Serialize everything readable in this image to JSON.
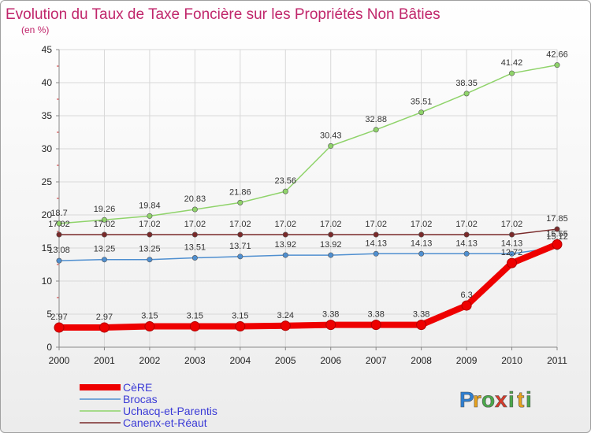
{
  "chart_data": {
    "type": "line",
    "title": "Evolution du Taux de Taxe Foncière sur les Propriétés Non Bâties",
    "subtitle": "(en %)",
    "categories": [
      "2000",
      "2001",
      "2002",
      "2003",
      "2004",
      "2005",
      "2006",
      "2007",
      "2008",
      "2009",
      "2010",
      "2011"
    ],
    "ylim": [
      0,
      45
    ],
    "yticks": [
      0,
      5,
      10,
      15,
      20,
      25,
      30,
      35,
      40,
      45
    ],
    "grid": true,
    "legend_position": "bottom-left",
    "series": [
      {
        "name": "Canenx-et-Réaut",
        "color": "#7a2a2a",
        "values": [
          17.02,
          17.02,
          17.02,
          17.02,
          17.02,
          17.02,
          17.02,
          17.02,
          17.02,
          17.02,
          17.02,
          17.85
        ],
        "labels": [
          "17.02",
          "17.02",
          "17.02",
          "17.02",
          "17.02",
          "17.02",
          "17.02",
          "17.02",
          "17.02",
          "17.02",
          "17.02",
          "17.85"
        ]
      },
      {
        "name": "Brocas",
        "color": "#4f8fd0",
        "values": [
          13.08,
          13.25,
          13.25,
          13.51,
          13.71,
          13.92,
          13.92,
          14.13,
          14.13,
          14.13,
          14.13,
          15.12
        ],
        "labels": [
          "13.08",
          "13.25",
          "13.25",
          "13.51",
          "13.71",
          "13.92",
          "13.92",
          "14.13",
          "14.13",
          "14.13",
          "14.13",
          "15.12"
        ]
      },
      {
        "name": "Uchacq-et-Parentis",
        "color": "#8fd36a",
        "values": [
          18.7,
          19.26,
          19.84,
          20.83,
          21.86,
          23.56,
          30.43,
          32.88,
          35.51,
          38.35,
          41.42,
          42.66
        ],
        "labels": [
          "18.7",
          "19.26",
          "19.84",
          "20.83",
          "21.86",
          "23.56",
          "30.43",
          "32.88",
          "35.51",
          "38.35",
          "41.42",
          "42.66"
        ]
      },
      {
        "name": "CèRE",
        "color": "#ee0000",
        "values": [
          2.97,
          2.97,
          3.15,
          3.15,
          3.15,
          3.24,
          3.38,
          3.38,
          3.38,
          6.3,
          12.72,
          15.55
        ],
        "labels": [
          "2.97",
          "2.97",
          "3.15",
          "3.15",
          "3.15",
          "3.24",
          "3.38",
          "3.38",
          "3.38",
          "6.3",
          "12.72",
          "15.55"
        ]
      }
    ],
    "legend": [
      "CèRE",
      "Brocas",
      "Uchacq-et-Parentis",
      "Canenx-et-Réaut"
    ]
  },
  "logo": {
    "letters": [
      "P",
      "r",
      "o",
      "x",
      "i",
      "t",
      "i"
    ],
    "colors": [
      "#2d7fd3",
      "#e8a21c",
      "#4aa84a",
      "#d63a2a",
      "#4aa84a",
      "#e8a21c",
      "#4aa84a"
    ]
  }
}
